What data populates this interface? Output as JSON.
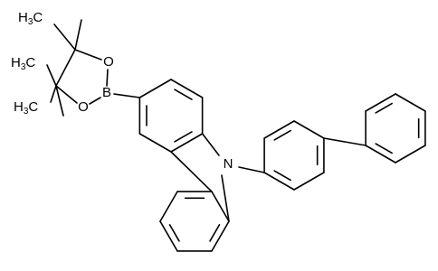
{
  "atoms": [
    {
      "label": [
        "H",
        "3",
        "C"
      ]
    },
    {
      "label": [
        "H",
        "3",
        "C"
      ]
    },
    {
      "label": [
        "H",
        "3",
        "C"
      ]
    },
    {
      "label": [
        "O"
      ]
    },
    {
      "label": [
        "O"
      ]
    },
    {
      "label": [
        "B"
      ]
    },
    {
      "label": [
        "N"
      ]
    }
  ]
}
